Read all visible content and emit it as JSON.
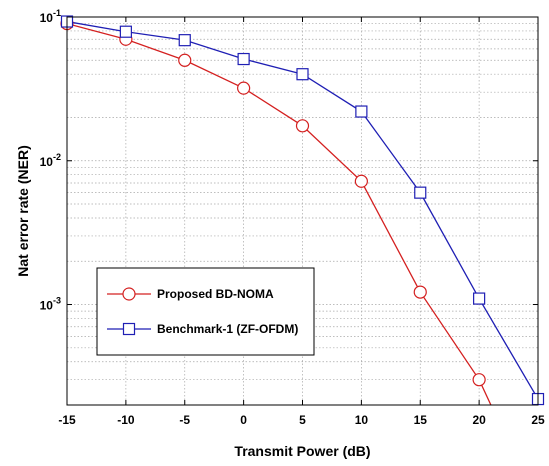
{
  "chart_data": {
    "type": "line",
    "xlabel": "Transmit Power (dB)",
    "ylabel": "Nat error rate (NER)",
    "xlim": [
      -15,
      25
    ],
    "ylim": [
      0.0002,
      0.1
    ],
    "yscale": "log",
    "grid": true,
    "xticks": [
      -15,
      -10,
      -5,
      0,
      5,
      10,
      15,
      20,
      25
    ],
    "xtick_labels": [
      "-15",
      "-10",
      "-5",
      "0",
      "5",
      "10",
      "15",
      "20",
      "25"
    ],
    "yticks": [
      {
        "value": 0.1,
        "base": "10",
        "exp": "-1"
      },
      {
        "value": 0.01,
        "base": "10",
        "exp": "-2"
      },
      {
        "value": 0.001,
        "base": "10",
        "exp": "-3"
      }
    ],
    "legend_position": "lower-left",
    "series": [
      {
        "name": "Proposed BD-NOMA",
        "color": "#d42020",
        "marker": "circle",
        "x": [
          -15,
          -10,
          -5,
          0,
          5,
          10,
          15,
          20,
          21
        ],
        "y": [
          0.09,
          0.07,
          0.05,
          0.032,
          0.0175,
          0.0072,
          0.00122,
          0.0003,
          0.0002
        ]
      },
      {
        "name": "Benchmark-1 (ZF-OFDM)",
        "color": "#1f1fb4",
        "marker": "square",
        "x": [
          -15,
          -10,
          -5,
          0,
          5,
          10,
          15,
          20,
          25
        ],
        "y": [
          0.093,
          0.079,
          0.069,
          0.051,
          0.04,
          0.022,
          0.006,
          0.0011,
          0.00022
        ]
      }
    ]
  }
}
